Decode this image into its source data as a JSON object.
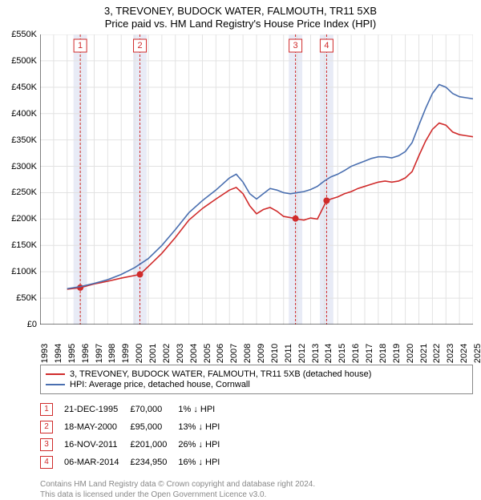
{
  "title_main": "3, TREVONEY, BUDOCK WATER, FALMOUTH, TR11 5XB",
  "title_sub": "Price paid vs. HM Land Registry's House Price Index (HPI)",
  "chart": {
    "type": "line",
    "background_color": "#ffffff",
    "grid_color": "#e2e2e2",
    "axis_color": "#000000",
    "label_fontsize": 11,
    "title_fontsize": 13,
    "x": {
      "min": 1993,
      "max": 2025,
      "tick_step": 1,
      "ticks": [
        1993,
        1994,
        1995,
        1996,
        1997,
        1998,
        1999,
        2000,
        2001,
        2002,
        2003,
        2004,
        2005,
        2006,
        2007,
        2008,
        2009,
        2010,
        2011,
        2012,
        2013,
        2014,
        2015,
        2016,
        2017,
        2018,
        2019,
        2020,
        2021,
        2022,
        2023,
        2024,
        2025
      ]
    },
    "y": {
      "min": 0,
      "max": 550000,
      "tick_step": 50000,
      "ticks": [
        0,
        50000,
        100000,
        150000,
        200000,
        250000,
        300000,
        350000,
        400000,
        450000,
        500000,
        550000
      ],
      "tick_labels": [
        "£0",
        "£50K",
        "£100K",
        "£150K",
        "£200K",
        "£250K",
        "£300K",
        "£350K",
        "£400K",
        "£450K",
        "£500K",
        "£550K"
      ]
    },
    "sale_bands": {
      "fill": "#e8ebf6",
      "dash_color": "#d02b2b",
      "box_stroke": "#d02b2b",
      "box_text": "#d02b2b",
      "items": [
        {
          "idx": "1",
          "x": 1995.97
        },
        {
          "idx": "2",
          "x": 2000.38
        },
        {
          "idx": "3",
          "x": 2011.88
        },
        {
          "idx": "4",
          "x": 2014.18
        }
      ]
    },
    "series": [
      {
        "name": "3, TREVONEY, BUDOCK WATER, FALMOUTH, TR11 5XB (detached house)",
        "color": "#d02b2b",
        "line_width": 1.6,
        "marker": "circle",
        "marker_size": 4,
        "marker_points": [
          [
            1995.97,
            70000
          ],
          [
            2000.38,
            95000
          ],
          [
            2011.88,
            201000
          ],
          [
            2014.18,
            234950
          ]
        ],
        "points": [
          [
            1995.0,
            67000
          ],
          [
            1995.97,
            70000
          ],
          [
            1997,
            77000
          ],
          [
            1998,
            82000
          ],
          [
            1999,
            88000
          ],
          [
            2000.38,
            95000
          ],
          [
            2001,
            110000
          ],
          [
            2002,
            135000
          ],
          [
            2003,
            165000
          ],
          [
            2004,
            198000
          ],
          [
            2005,
            220000
          ],
          [
            2006,
            238000
          ],
          [
            2007,
            255000
          ],
          [
            2007.5,
            260000
          ],
          [
            2008,
            248000
          ],
          [
            2008.5,
            225000
          ],
          [
            2009,
            210000
          ],
          [
            2009.5,
            218000
          ],
          [
            2010,
            222000
          ],
          [
            2010.5,
            215000
          ],
          [
            2011,
            205000
          ],
          [
            2011.88,
            201000
          ],
          [
            2012,
            200000
          ],
          [
            2012.5,
            198000
          ],
          [
            2013,
            202000
          ],
          [
            2013.5,
            200000
          ],
          [
            2014.18,
            234950
          ],
          [
            2014.5,
            238000
          ],
          [
            2015,
            242000
          ],
          [
            2015.5,
            248000
          ],
          [
            2016,
            252000
          ],
          [
            2016.5,
            258000
          ],
          [
            2017,
            262000
          ],
          [
            2017.5,
            266000
          ],
          [
            2018,
            270000
          ],
          [
            2018.5,
            272000
          ],
          [
            2019,
            270000
          ],
          [
            2019.5,
            272000
          ],
          [
            2020,
            278000
          ],
          [
            2020.5,
            290000
          ],
          [
            2021,
            320000
          ],
          [
            2021.5,
            348000
          ],
          [
            2022,
            370000
          ],
          [
            2022.5,
            382000
          ],
          [
            2023,
            378000
          ],
          [
            2023.5,
            365000
          ],
          [
            2024,
            360000
          ],
          [
            2024.5,
            358000
          ],
          [
            2025,
            356000
          ]
        ]
      },
      {
        "name": "HPI: Average price, detached house, Cornwall",
        "color": "#4a6fb0",
        "line_width": 1.4,
        "points": [
          [
            1995,
            68000
          ],
          [
            1996,
            72000
          ],
          [
            1997,
            78000
          ],
          [
            1998,
            85000
          ],
          [
            1999,
            95000
          ],
          [
            2000,
            108000
          ],
          [
            2001,
            125000
          ],
          [
            2002,
            150000
          ],
          [
            2003,
            180000
          ],
          [
            2004,
            212000
          ],
          [
            2005,
            235000
          ],
          [
            2006,
            255000
          ],
          [
            2007,
            278000
          ],
          [
            2007.5,
            285000
          ],
          [
            2008,
            270000
          ],
          [
            2008.5,
            248000
          ],
          [
            2009,
            238000
          ],
          [
            2009.5,
            248000
          ],
          [
            2010,
            258000
          ],
          [
            2010.5,
            255000
          ],
          [
            2011,
            250000
          ],
          [
            2011.5,
            248000
          ],
          [
            2012,
            250000
          ],
          [
            2012.5,
            252000
          ],
          [
            2013,
            256000
          ],
          [
            2013.5,
            262000
          ],
          [
            2014,
            272000
          ],
          [
            2014.5,
            280000
          ],
          [
            2015,
            285000
          ],
          [
            2015.5,
            292000
          ],
          [
            2016,
            300000
          ],
          [
            2016.5,
            305000
          ],
          [
            2017,
            310000
          ],
          [
            2017.5,
            315000
          ],
          [
            2018,
            318000
          ],
          [
            2018.5,
            318000
          ],
          [
            2019,
            316000
          ],
          [
            2019.5,
            320000
          ],
          [
            2020,
            328000
          ],
          [
            2020.5,
            345000
          ],
          [
            2021,
            378000
          ],
          [
            2021.5,
            410000
          ],
          [
            2022,
            438000
          ],
          [
            2022.5,
            455000
          ],
          [
            2023,
            450000
          ],
          [
            2023.5,
            438000
          ],
          [
            2024,
            432000
          ],
          [
            2024.5,
            430000
          ],
          [
            2025,
            428000
          ]
        ]
      }
    ]
  },
  "legend": [
    {
      "color": "#d02b2b",
      "label": "3, TREVONEY, BUDOCK WATER, FALMOUTH, TR11 5XB (detached house)"
    },
    {
      "color": "#4a6fb0",
      "label": "HPI: Average price, detached house, Cornwall"
    }
  ],
  "sales_table": {
    "box_color": "#d02b2b",
    "rows": [
      {
        "idx": "1",
        "date": "21-DEC-1995",
        "price": "£70,000",
        "delta": "1% ↓ HPI"
      },
      {
        "idx": "2",
        "date": "18-MAY-2000",
        "price": "£95,000",
        "delta": "13% ↓ HPI"
      },
      {
        "idx": "3",
        "date": "16-NOV-2011",
        "price": "£201,000",
        "delta": "26% ↓ HPI"
      },
      {
        "idx": "4",
        "date": "06-MAR-2014",
        "price": "£234,950",
        "delta": "16% ↓ HPI"
      }
    ]
  },
  "footer": {
    "line1": "Contains HM Land Registry data © Crown copyright and database right 2024.",
    "line2": "This data is licensed under the Open Government Licence v3.0."
  }
}
